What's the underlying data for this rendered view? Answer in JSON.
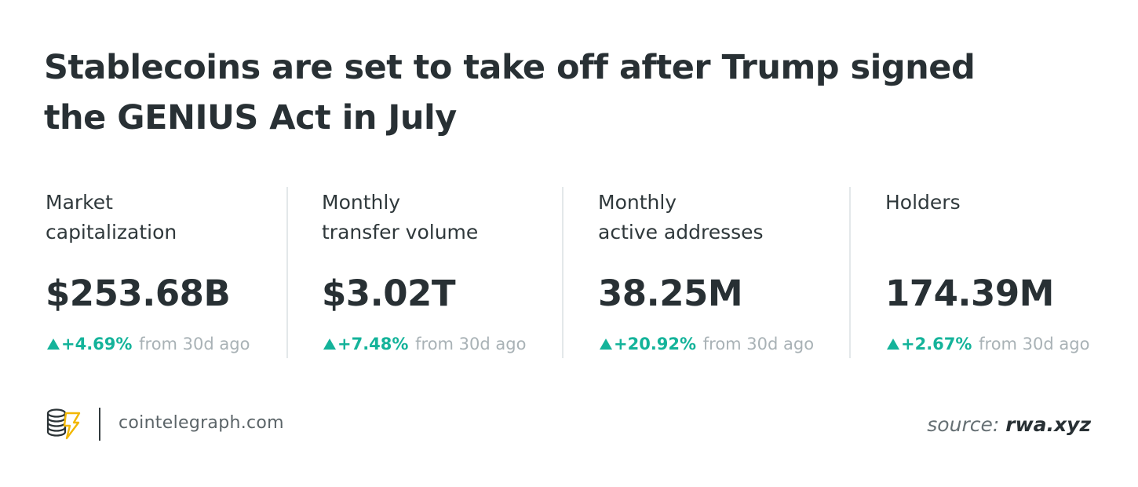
{
  "title": {
    "line1": "Stablecoins are set to take off after Trump signed",
    "line2": "the GENIUS Act in July"
  },
  "stats": [
    {
      "label_line1": "Market",
      "label_line2": "capitalization",
      "value": "$253.68B",
      "change": "+4.69%",
      "since": "from 30d ago"
    },
    {
      "label_line1": "Monthly",
      "label_line2": "transfer volume",
      "value": "$3.02T",
      "change": "+7.48%",
      "since": "from 30d ago"
    },
    {
      "label_line1": "Monthly",
      "label_line2": "active addresses",
      "value": "38.25M",
      "change": "+20.92%",
      "since": "from 30d ago"
    },
    {
      "label_line1": "Holders",
      "label_line2": "",
      "value": "174.39M",
      "change": "+2.67%",
      "since": "from 30d ago"
    }
  ],
  "colors": {
    "positive": "#14b39a",
    "logo_accent": "#f2b705"
  },
  "footer": {
    "logo_icon": "cointelegraph-logo-icon",
    "site": "cointelegraph.com",
    "source_prefix": "source:",
    "source_name": "rwa.xyz"
  }
}
